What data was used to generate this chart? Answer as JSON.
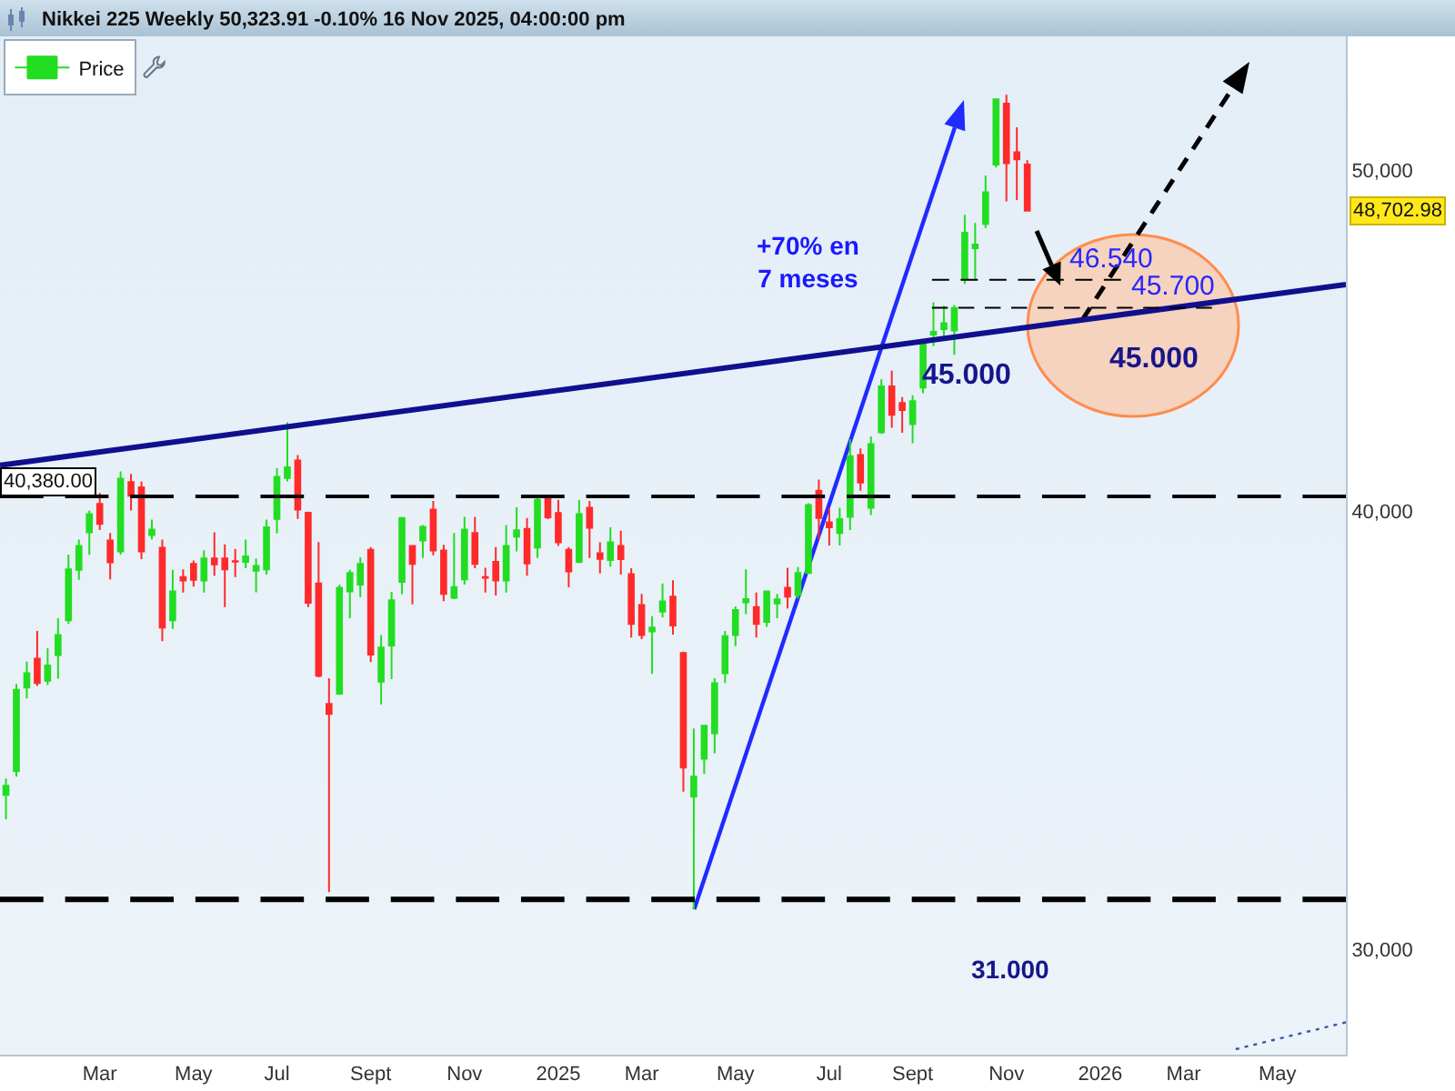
{
  "chart_data": {
    "type": "candlestick",
    "title": "Nikkei 225 Weekly 50,323.91 -0.10% 16 Nov 2025, 04:00:00 pm",
    "xlim": [
      "2023-12-28",
      "2026-06-19"
    ],
    "xticks": [
      {
        "value": "2024-03-04",
        "label": "Mar"
      },
      {
        "value": "2024-05-06",
        "label": "May"
      },
      {
        "value": "2024-07-01",
        "label": "Jul"
      },
      {
        "value": "2024-09-02",
        "label": "Sept"
      },
      {
        "value": "2024-11-04",
        "label": "Nov"
      },
      {
        "value": "2025-01-06",
        "label": "2025"
      },
      {
        "value": "2025-03-03",
        "label": "Mar"
      },
      {
        "value": "2025-05-05",
        "label": "May"
      },
      {
        "value": "2025-07-07",
        "label": "Jul"
      },
      {
        "value": "2025-09-01",
        "label": "Sept"
      },
      {
        "value": "2025-11-03",
        "label": "Nov"
      },
      {
        "value": "2026-01-05",
        "label": "2026"
      },
      {
        "value": "2026-03-02",
        "label": "Mar"
      },
      {
        "value": "2026-05-04",
        "label": "May"
      }
    ],
    "ylim": [
      28000,
      54600
    ],
    "yticks": [
      {
        "value": 30000,
        "label": "30,000"
      },
      {
        "value": 40000,
        "label": "40,000"
      },
      {
        "value": 50000,
        "label": "50,000"
      }
    ],
    "log": true,
    "legend": "top left",
    "series": [
      {
        "name": "Price",
        "x": [
          "2024-01-01",
          "2024-01-08",
          "2024-01-15",
          "2024-01-22",
          "2024-01-29",
          "2024-02-05",
          "2024-02-12",
          "2024-02-19",
          "2024-02-26",
          "2024-03-04",
          "2024-03-11",
          "2024-03-18",
          "2024-03-25",
          "2024-04-01",
          "2024-04-08",
          "2024-04-15",
          "2024-04-22",
          "2024-04-29",
          "2024-05-06",
          "2024-05-13",
          "2024-05-20",
          "2024-05-27",
          "2024-06-03",
          "2024-06-10",
          "2024-06-17",
          "2024-06-24",
          "2024-07-01",
          "2024-07-08",
          "2024-07-15",
          "2024-07-22",
          "2024-07-29",
          "2024-08-05",
          "2024-08-12",
          "2024-08-19",
          "2024-08-26",
          "2024-09-02",
          "2024-09-09",
          "2024-09-16",
          "2024-09-23",
          "2024-09-30",
          "2024-10-07",
          "2024-10-14",
          "2024-10-21",
          "2024-10-28",
          "2024-11-04",
          "2024-11-11",
          "2024-11-18",
          "2024-11-25",
          "2024-12-02",
          "2024-12-09",
          "2024-12-16",
          "2024-12-23",
          "2024-12-30",
          "2025-01-06",
          "2025-01-13",
          "2025-01-20",
          "2025-01-27",
          "2025-02-03",
          "2025-02-10",
          "2025-02-17",
          "2025-02-24",
          "2025-03-03",
          "2025-03-10",
          "2025-03-17",
          "2025-03-24",
          "2025-03-31",
          "2025-04-07",
          "2025-04-14",
          "2025-04-21",
          "2025-04-28",
          "2025-05-05",
          "2025-05-12",
          "2025-05-19",
          "2025-05-26",
          "2025-06-02",
          "2025-06-09",
          "2025-06-16",
          "2025-06-23",
          "2025-06-30",
          "2025-07-07",
          "2025-07-14",
          "2025-07-21",
          "2025-07-28",
          "2025-08-04",
          "2025-08-11",
          "2025-08-18",
          "2025-08-25",
          "2025-09-01",
          "2025-09-08",
          "2025-09-15",
          "2025-09-22",
          "2025-09-29",
          "2025-10-06",
          "2025-10-13",
          "2025-10-20",
          "2025-10-27",
          "2025-11-03",
          "2025-11-10",
          "2025-11-17"
        ],
        "ohlc": [
          [
            33200,
            33560,
            32670,
            33400
          ],
          [
            33720,
            35700,
            33600,
            35570
          ],
          [
            35620,
            36230,
            35370,
            35960
          ],
          [
            36300,
            36970,
            35660,
            35730
          ],
          [
            35780,
            36550,
            35680,
            36140
          ],
          [
            36390,
            37280,
            35830,
            36870
          ],
          [
            37230,
            38870,
            37140,
            38490
          ],
          [
            38480,
            39250,
            38230,
            39090
          ],
          [
            39440,
            40010,
            38860,
            39910
          ],
          [
            40180,
            40470,
            39500,
            39660
          ],
          [
            39230,
            39420,
            38240,
            38670
          ],
          [
            38950,
            41050,
            38870,
            40850
          ],
          [
            40760,
            40980,
            40010,
            40400
          ],
          [
            40620,
            40780,
            38750,
            38950
          ],
          [
            39370,
            39770,
            39260,
            39510
          ],
          [
            39040,
            39250,
            36720,
            37050
          ],
          [
            37230,
            38480,
            37020,
            37940
          ],
          [
            38300,
            38490,
            37910,
            38210
          ],
          [
            38630,
            38720,
            38060,
            38230
          ],
          [
            38210,
            38980,
            37910,
            38770
          ],
          [
            38770,
            39440,
            38330,
            38620
          ],
          [
            38770,
            39130,
            37550,
            38490
          ],
          [
            38700,
            39010,
            38300,
            38690
          ],
          [
            38680,
            39250,
            38520,
            38820
          ],
          [
            38460,
            38770,
            37920,
            38580
          ],
          [
            38490,
            39770,
            38360,
            39570
          ],
          [
            39790,
            41130,
            39410,
            40900
          ],
          [
            40870,
            42390,
            40780,
            41160
          ],
          [
            41340,
            41490,
            39790,
            40030
          ],
          [
            39950,
            39980,
            37550,
            37660
          ],
          [
            38140,
            39190,
            35860,
            35900
          ],
          [
            35240,
            35840,
            31150,
            35010
          ],
          [
            35480,
            38110,
            35450,
            38030
          ],
          [
            37940,
            38480,
            37280,
            38400
          ],
          [
            38110,
            38800,
            37800,
            38630
          ],
          [
            38990,
            39060,
            36220,
            36400
          ],
          [
            35760,
            36870,
            35230,
            36570
          ],
          [
            36620,
            37930,
            35820,
            37720
          ],
          [
            38180,
            39830,
            37870,
            39810
          ],
          [
            39090,
            39100,
            37620,
            38630
          ],
          [
            39230,
            39630,
            38780,
            39580
          ],
          [
            40030,
            40260,
            38850,
            38970
          ],
          [
            38970,
            39120,
            37700,
            37880
          ],
          [
            37780,
            39420,
            37750,
            38050
          ],
          [
            38240,
            39840,
            38110,
            39510
          ],
          [
            39420,
            39840,
            38520,
            38630
          ],
          [
            38300,
            38530,
            37910,
            38280
          ],
          [
            38680,
            39060,
            37840,
            38210
          ],
          [
            38210,
            39630,
            37910,
            39090
          ],
          [
            39330,
            40090,
            38950,
            39490
          ],
          [
            39530,
            39810,
            38330,
            38640
          ],
          [
            39050,
            40430,
            38780,
            40290
          ],
          [
            40340,
            40360,
            39780,
            39830
          ],
          [
            39940,
            40290,
            39090,
            39180
          ],
          [
            38990,
            39060,
            38040,
            38440
          ],
          [
            38680,
            40290,
            38650,
            39910
          ],
          [
            40080,
            40260,
            38780,
            39560
          ],
          [
            38900,
            39180,
            38390,
            38760
          ],
          [
            38730,
            39570,
            38560,
            39180
          ],
          [
            39090,
            39480,
            38360,
            38750
          ],
          [
            38370,
            38520,
            36810,
            37140
          ],
          [
            37600,
            37880,
            36770,
            36870
          ],
          [
            36960,
            37330,
            35940,
            37050
          ],
          [
            37440,
            38140,
            37300,
            37690
          ],
          [
            37810,
            38220,
            36880,
            37100
          ],
          [
            36440,
            36470,
            33270,
            33800
          ],
          [
            33160,
            34680,
            30800,
            33600
          ],
          [
            34000,
            34760,
            33660,
            34740
          ],
          [
            34570,
            35840,
            34120,
            35720
          ],
          [
            35960,
            36970,
            35730,
            36840
          ],
          [
            36870,
            37570,
            36600,
            37480
          ],
          [
            37670,
            38490,
            37380,
            37750
          ],
          [
            37550,
            37910,
            36810,
            37140
          ],
          [
            37190,
            37960,
            37070,
            37940
          ],
          [
            37640,
            37880,
            37280,
            37740
          ],
          [
            38030,
            38530,
            37520,
            37810
          ],
          [
            37850,
            38550,
            37760,
            38400
          ],
          [
            38400,
            40200,
            38380,
            40150
          ],
          [
            40530,
            40830,
            39260,
            39810
          ],
          [
            39700,
            40080,
            39100,
            39570
          ],
          [
            39420,
            40080,
            39100,
            39780
          ],
          [
            39840,
            41920,
            39500,
            41460
          ],
          [
            41490,
            41670,
            40530,
            40750
          ],
          [
            40080,
            42000,
            39890,
            41790
          ],
          [
            42110,
            43600,
            42070,
            43400
          ],
          [
            43400,
            43850,
            42240,
            42600
          ],
          [
            42930,
            43100,
            42100,
            42730
          ],
          [
            42340,
            43150,
            41810,
            42980
          ],
          [
            43370,
            44770,
            43210,
            44630
          ],
          [
            44900,
            45860,
            44560,
            44980
          ],
          [
            45060,
            45760,
            44780,
            45240
          ],
          [
            45020,
            45780,
            44310,
            45690
          ],
          [
            46590,
            48570,
            46420,
            48000
          ],
          [
            47520,
            48310,
            46520,
            47630
          ],
          [
            48280,
            49840,
            48150,
            49290
          ],
          [
            50200,
            52420,
            50100,
            52390
          ],
          [
            52240,
            52550,
            49000,
            50240
          ],
          [
            50600,
            51440,
            49040,
            50370
          ],
          [
            50200,
            50340,
            48700,
            48702.98
          ]
        ],
        "colors": [
          "#22dd22",
          "#22dd22",
          "#22dd22",
          "#ff2a2a",
          "#22dd22",
          "#22dd22",
          "#22dd22",
          "#22dd22",
          "#22dd22",
          "#ff2a2a",
          "#ff2a2a",
          "#22dd22",
          "#ff2a2a",
          "#ff2a2a",
          "#22dd22",
          "#ff2a2a",
          "#22dd22",
          "#ff2a2a",
          "#ff2a2a",
          "#22dd22",
          "#ff2a2a",
          "#ff2a2a",
          "#ff2a2a",
          "#22dd22",
          "#22dd22",
          "#22dd22",
          "#22dd22",
          "#22dd22",
          "#ff2a2a",
          "#ff2a2a",
          "#ff2a2a",
          "#ff2a2a",
          "#22dd22",
          "#22dd22",
          "#22dd22",
          "#ff2a2a",
          "#22dd22",
          "#22dd22",
          "#22dd22",
          "#ff2a2a",
          "#22dd22",
          "#ff2a2a",
          "#ff2a2a",
          "#22dd22",
          "#22dd22",
          "#ff2a2a",
          "#ff2a2a",
          "#ff2a2a",
          "#22dd22",
          "#22dd22",
          "#ff2a2a",
          "#22dd22",
          "#ff2a2a",
          "#ff2a2a",
          "#ff2a2a",
          "#22dd22",
          "#ff2a2a",
          "#ff2a2a",
          "#22dd22",
          "#ff2a2a",
          "#ff2a2a",
          "#ff2a2a",
          "#22dd22",
          "#22dd22",
          "#ff2a2a",
          "#ff2a2a",
          "#22dd22",
          "#22dd22",
          "#22dd22",
          "#22dd22",
          "#22dd22",
          "#22dd22",
          "#ff2a2a",
          "#22dd22",
          "#22dd22",
          "#ff2a2a",
          "#22dd22",
          "#22dd22",
          "#ff2a2a",
          "#ff2a2a",
          "#22dd22",
          "#22dd22",
          "#ff2a2a",
          "#22dd22",
          "#22dd22",
          "#ff2a2a",
          "#ff2a2a",
          "#22dd22",
          "#22dd22",
          "#22dd22",
          "#22dd22",
          "#22dd22",
          "#22dd22",
          "#22dd22",
          "#22dd22",
          "#22dd22",
          "#ff2a2a",
          "#ff2a2a",
          "#ff2a2a"
        ]
      },
      {
        "type": "line",
        "color": "#10108f",
        "x": [
          "2023-12-28",
          "2026-06-19"
        ],
        "values": [
          41210,
          46400
        ]
      },
      {
        "type": "line",
        "color": "#000000",
        "x": [
          "2025-09-14",
          "2026-01-19"
        ],
        "values": [
          46540,
          46540
        ],
        "line_style": "dashed"
      },
      {
        "type": "line",
        "color": "#000000",
        "x": [
          "2025-09-14",
          "2026-03-21"
        ],
        "values": [
          45700,
          45700
        ],
        "line_style": "dashed"
      },
      {
        "type": "line",
        "color": "#3a55a8",
        "x": [
          "2026-04-06",
          "2026-06-19"
        ],
        "values": [
          28100,
          28600
        ],
        "line_style": "dotted"
      }
    ],
    "ref_lines": [
      {
        "axis": "y",
        "value": 40380,
        "label": "40,380.00",
        "color": "#000000",
        "line_style": "dashed"
      },
      {
        "axis": "y",
        "value": 31000,
        "color": "#000000",
        "line_style": "dashed"
      }
    ],
    "annotations": [
      "+70% en\n7 meses",
      {
        "text": "46.540",
        "x": "2026-01-12",
        "y": 46540
      },
      {
        "text": "45.700",
        "x": "2026-02-23",
        "y": 45700
      },
      "45.000",
      "45.000",
      "31.000",
      "48,702.98"
    ]
  }
}
